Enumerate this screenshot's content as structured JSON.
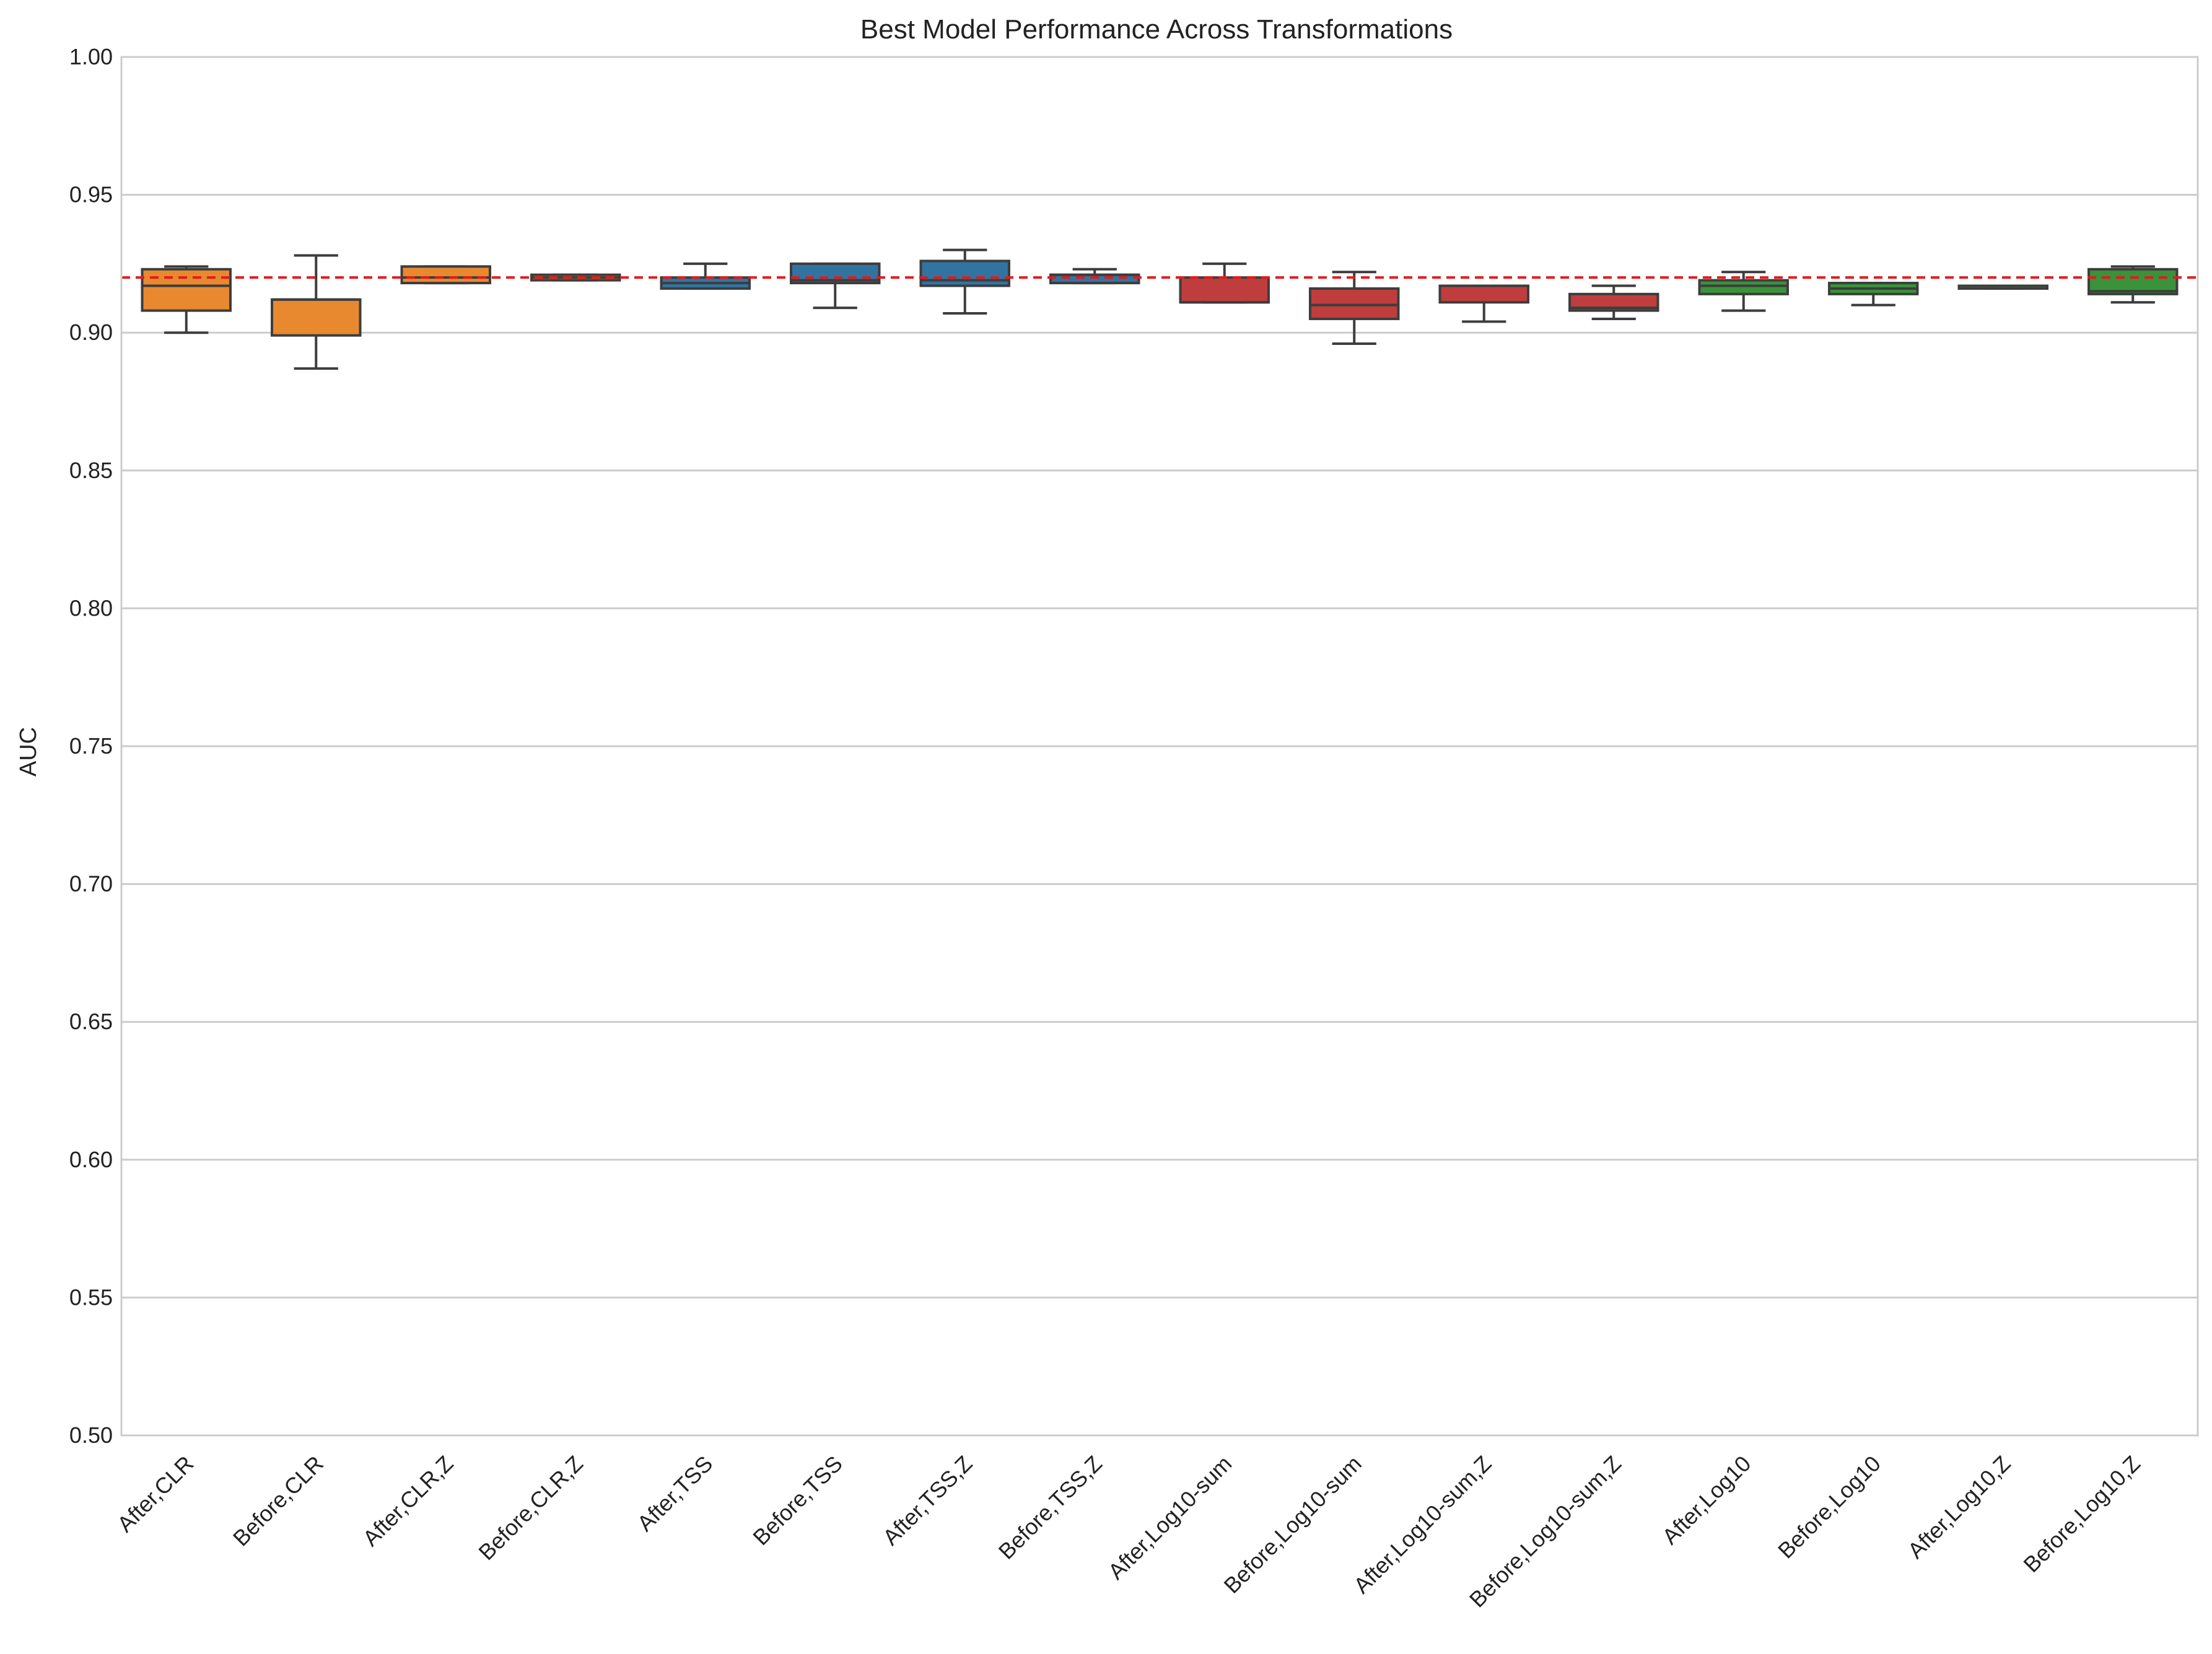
{
  "chart_data": {
    "type": "box",
    "title": "Best Model Performance Across Transformations",
    "xlabel": "",
    "ylabel": "AUC",
    "ylim": [
      0.5,
      1.0
    ],
    "yticks": [
      "0.50",
      "0.55",
      "0.60",
      "0.65",
      "0.70",
      "0.75",
      "0.80",
      "0.85",
      "0.90",
      "0.95",
      "1.00"
    ],
    "grid": "horizontal",
    "reference_line": {
      "value": 0.92,
      "color": "#e41a1c",
      "style": "dashed"
    },
    "categories": [
      "After,CLR",
      "Before,CLR",
      "After,CLR,Z",
      "Before,CLR,Z",
      "After,TSS",
      "Before,TSS",
      "After,TSS,Z",
      "Before,TSS,Z",
      "After,Log10-sum",
      "Before,Log10-sum",
      "After,Log10-sum,Z",
      "Before,Log10-sum,Z",
      "After,Log10",
      "Before,Log10",
      "After,Log10,Z",
      "Before,Log10,Z"
    ],
    "boxes": [
      {
        "whislo": 0.9,
        "q1": 0.908,
        "med": 0.917,
        "q3": 0.923,
        "whishi": 0.924,
        "color": "#e8892f"
      },
      {
        "whislo": 0.887,
        "q1": 0.899,
        "med": 0.912,
        "q3": 0.912,
        "whishi": 0.928,
        "color": "#e8892f"
      },
      {
        "whislo": 0.918,
        "q1": 0.918,
        "med": 0.92,
        "q3": 0.924,
        "whishi": 0.924,
        "color": "#e8892f"
      },
      {
        "whislo": 0.919,
        "q1": 0.919,
        "med": 0.92,
        "q3": 0.921,
        "whishi": 0.921,
        "color": "#e8892f"
      },
      {
        "whislo": 0.916,
        "q1": 0.916,
        "med": 0.918,
        "q3": 0.92,
        "whishi": 0.925,
        "color": "#3274a1"
      },
      {
        "whislo": 0.909,
        "q1": 0.918,
        "med": 0.919,
        "q3": 0.925,
        "whishi": 0.925,
        "color": "#3274a1"
      },
      {
        "whislo": 0.907,
        "q1": 0.917,
        "med": 0.919,
        "q3": 0.926,
        "whishi": 0.93,
        "color": "#3274a1"
      },
      {
        "whislo": 0.918,
        "q1": 0.918,
        "med": 0.921,
        "q3": 0.921,
        "whishi": 0.923,
        "color": "#3274a1"
      },
      {
        "whislo": 0.911,
        "q1": 0.911,
        "med": 0.911,
        "q3": 0.92,
        "whishi": 0.925,
        "color": "#c03d3e"
      },
      {
        "whislo": 0.896,
        "q1": 0.905,
        "med": 0.91,
        "q3": 0.916,
        "whishi": 0.922,
        "color": "#c03d3e"
      },
      {
        "whislo": 0.904,
        "q1": 0.911,
        "med": 0.917,
        "q3": 0.917,
        "whishi": 0.917,
        "color": "#c03d3e"
      },
      {
        "whislo": 0.905,
        "q1": 0.908,
        "med": 0.909,
        "q3": 0.914,
        "whishi": 0.917,
        "color": "#c03d3e"
      },
      {
        "whislo": 0.908,
        "q1": 0.914,
        "med": 0.917,
        "q3": 0.919,
        "whishi": 0.922,
        "color": "#3a923a"
      },
      {
        "whislo": 0.91,
        "q1": 0.914,
        "med": 0.916,
        "q3": 0.918,
        "whishi": 0.918,
        "color": "#3a923a"
      },
      {
        "whislo": 0.916,
        "q1": 0.916,
        "med": 0.917,
        "q3": 0.917,
        "whishi": 0.917,
        "color": "#3a923a"
      },
      {
        "whislo": 0.911,
        "q1": 0.914,
        "med": 0.915,
        "q3": 0.923,
        "whishi": 0.924,
        "color": "#3a923a"
      }
    ]
  }
}
